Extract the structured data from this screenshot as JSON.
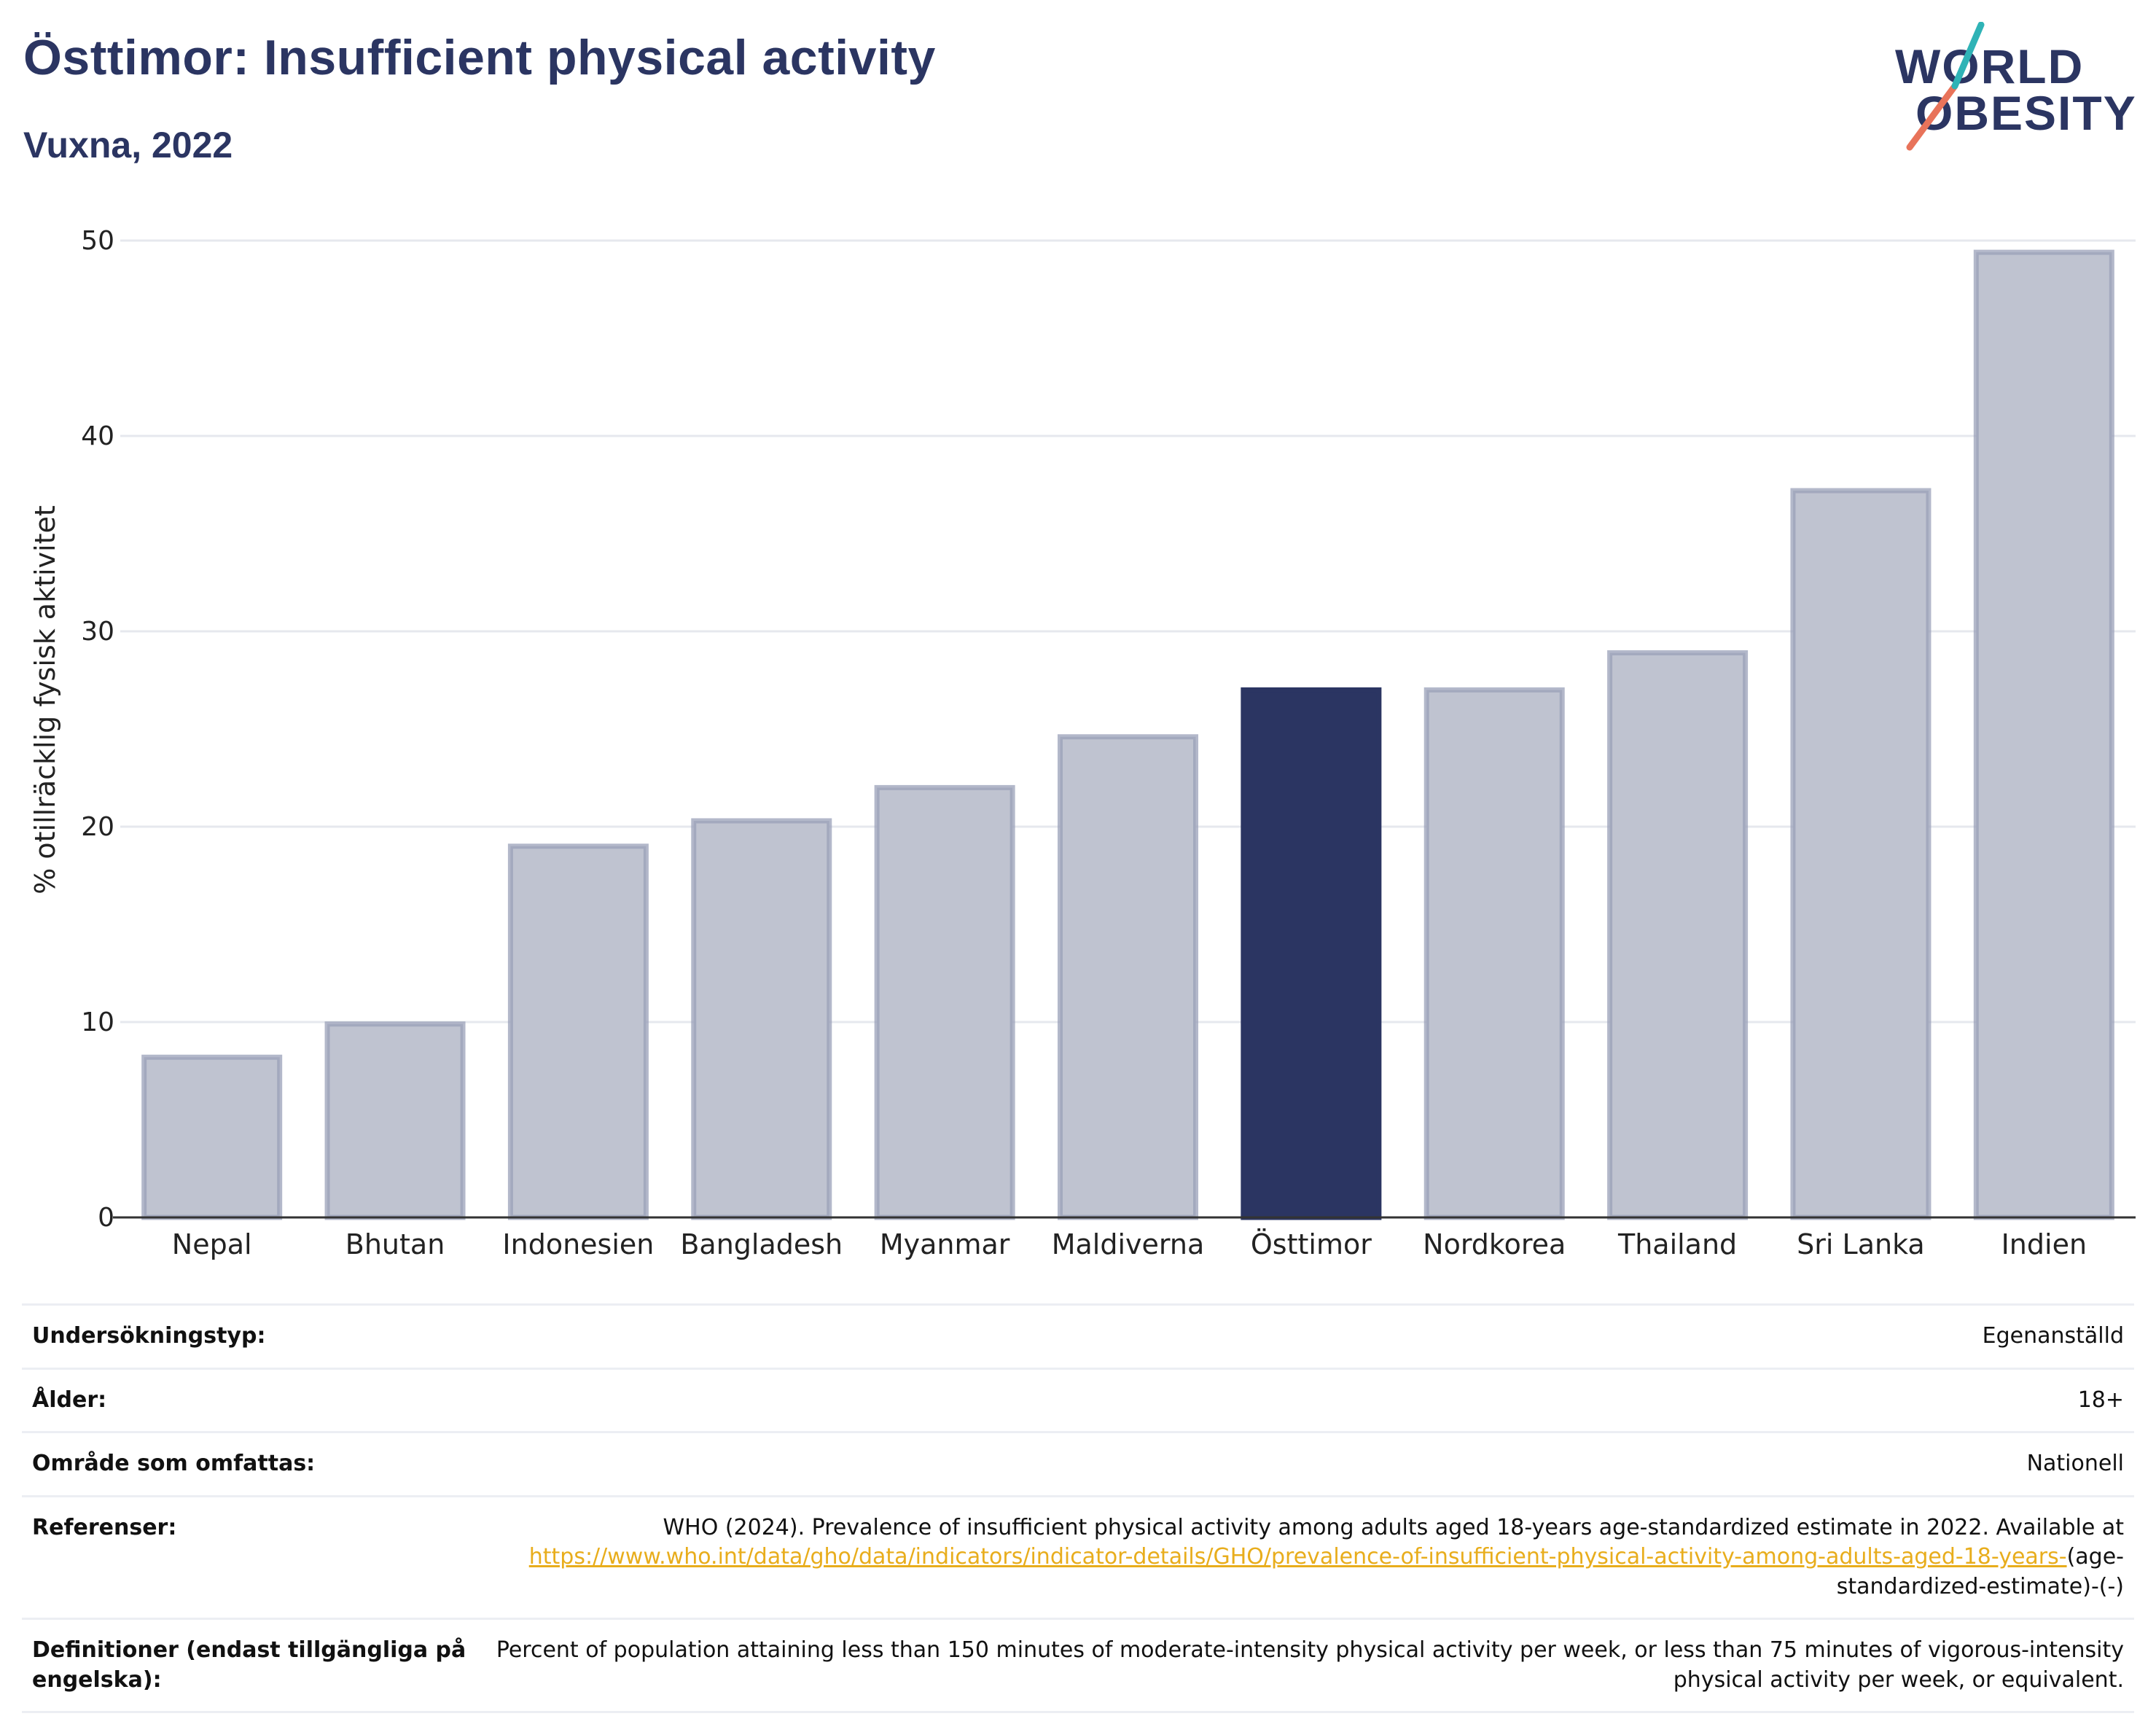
{
  "header": {
    "title": "Östtimor: Insufficient physical activity",
    "subtitle": "Vuxna, 2022"
  },
  "logo": {
    "line1": "WORLD",
    "line2": "OBESITY",
    "accent_colors": [
      "#e8735a",
      "#2fb3b6"
    ]
  },
  "colors": {
    "highlight": "#2b3562",
    "bar": "#bfc3d0",
    "bar_border": "#9aa0b8",
    "grid": "#e6e8ee",
    "link": "#e8ad1c"
  },
  "chart_data": {
    "type": "bar",
    "title": "Östtimor: Insufficient physical activity",
    "subtitle": "Vuxna, 2022",
    "xlabel": "",
    "ylabel": "% otillräcklig fysisk aktivitet",
    "ylim": [
      0,
      50
    ],
    "yticks": [
      0,
      10,
      20,
      30,
      40,
      50
    ],
    "grid": true,
    "categories": [
      "Nepal",
      "Bhutan",
      "Indonesien",
      "Bangladesh",
      "Myanmar",
      "Maldiverna",
      "Östtimor",
      "Nordkorea",
      "Thailand",
      "Sri Lanka",
      "Indien"
    ],
    "values": [
      8.2,
      9.9,
      19.0,
      20.3,
      22.0,
      24.6,
      27.0,
      27.0,
      28.9,
      37.2,
      49.4
    ],
    "highlight": "Östtimor"
  },
  "meta": {
    "rows": [
      {
        "label": "Undersökningstyp:",
        "value": "Egenanställd"
      },
      {
        "label": "Ålder:",
        "value": "18+"
      },
      {
        "label": "Område som omfattas:",
        "value": "Nationell"
      }
    ],
    "references": {
      "label": "Referenser:",
      "text": "WHO (2024). Prevalence of insufficient physical activity among adults aged 18-years age-standardized estimate in 2022. Available at ",
      "link": "https://www.who.int/data/gho/data/indicators/indicator-details/GHO/prevalence-of-insufficient-physical-activity-among-adults-aged-18-years-",
      "suffix": "(age-standardized-estimate)-(-)"
    },
    "definitions": {
      "label": "Definitioner (endast tillgängliga på engelska):",
      "value": "Percent of population attaining less than 150 minutes of moderate-intensity physical activity per week, or less than 75 minutes of vigorous-intensity physical activity per week, or equivalent."
    }
  }
}
